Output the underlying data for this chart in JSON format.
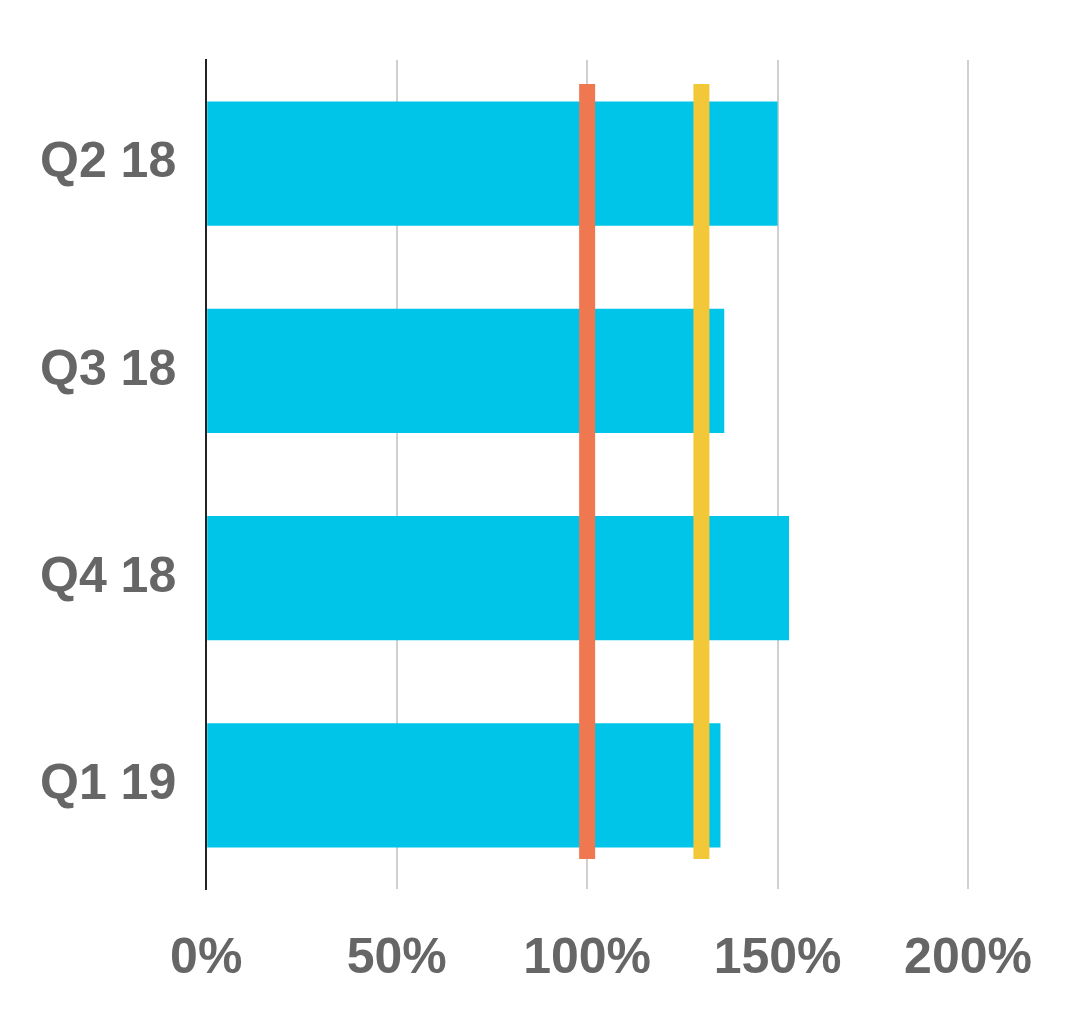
{
  "chart_data": {
    "type": "bar",
    "orientation": "horizontal",
    "categories": [
      "Q2 18",
      "Q3 18",
      "Q4 18",
      "Q1 19"
    ],
    "values": [
      150,
      136,
      153,
      135
    ],
    "color": "#00c4e8",
    "xlim": [
      0,
      200
    ],
    "xticks": [
      {
        "value": 0,
        "label": "0%"
      },
      {
        "value": 50,
        "label": "50%"
      },
      {
        "value": 100,
        "label": "100%"
      },
      {
        "value": 150,
        "label": "150%"
      },
      {
        "value": 200,
        "label": "200%"
      }
    ],
    "grid": "x",
    "legend": false,
    "ref_lines": [
      {
        "axis": "x",
        "value": 100,
        "color": "#f07850"
      },
      {
        "axis": "x",
        "value": 130,
        "color": "#f2c838"
      }
    ]
  }
}
